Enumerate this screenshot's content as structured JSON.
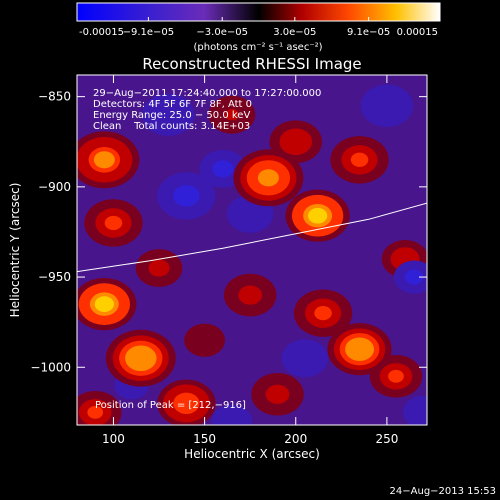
{
  "colorbar": {
    "tick_labels": [
      "-0.00015",
      "−9.1e−05",
      "−3.0e−05",
      "3.0e−05",
      "9.1e−05",
      "0.00015"
    ],
    "tick_values": [
      -0.00015,
      -9.1e-05,
      -3e-05,
      3e-05,
      9.1e-05,
      0.00015
    ],
    "range": [
      -0.00015,
      0.00015
    ],
    "units_label": "(photons cm⁻² s⁻¹ asec⁻²)"
  },
  "chart_data": {
    "type": "heatmap",
    "title": "Reconstructed RHESSI Image",
    "xlabel": "Heliocentric X (arcsec)",
    "ylabel": "Heliocentric Y (arcsec)",
    "xlim": [
      80,
      272
    ],
    "ylim": [
      -1032,
      -838
    ],
    "x_ticks": [
      100,
      150,
      200,
      250
    ],
    "y_ticks": [
      -850,
      -900,
      -950,
      -1000
    ],
    "annotations": {
      "time": "29−Aug−2011 17:24:40.000 to 17:27:00.000",
      "detectors": "Detectors: 4F 5F 6F 7F 8F, Att 0",
      "energy": "Energy Range: 25.0 − 50.0 keV",
      "counts": "Clean    Total counts: 3.14E+03",
      "peak": "Position of Peak = [212,−916]"
    },
    "limb_curve": [
      {
        "x": 80,
        "y": -947
      },
      {
        "x": 120,
        "y": -941
      },
      {
        "x": 160,
        "y": -934
      },
      {
        "x": 200,
        "y": -926
      },
      {
        "x": 240,
        "y": -918
      },
      {
        "x": 272,
        "y": -909
      }
    ],
    "peak": {
      "x": 212,
      "y": -916
    },
    "emission_blobs": [
      {
        "x": 212,
        "y": -916,
        "v": 1.0,
        "s": 11
      },
      {
        "x": 185,
        "y": -895,
        "v": 0.8,
        "s": 12
      },
      {
        "x": 235,
        "y": -885,
        "v": 0.6,
        "s": 10
      },
      {
        "x": 200,
        "y": -875,
        "v": 0.55,
        "s": 9
      },
      {
        "x": 95,
        "y": -885,
        "v": 0.75,
        "s": 12
      },
      {
        "x": 100,
        "y": -920,
        "v": 0.6,
        "s": 10
      },
      {
        "x": 95,
        "y": -965,
        "v": 0.95,
        "s": 11
      },
      {
        "x": 115,
        "y": -995,
        "v": 0.9,
        "s": 12
      },
      {
        "x": 140,
        "y": -1020,
        "v": 0.7,
        "s": 10
      },
      {
        "x": 90,
        "y": -1025,
        "v": 0.6,
        "s": 9
      },
      {
        "x": 235,
        "y": -990,
        "v": 0.85,
        "s": 11
      },
      {
        "x": 255,
        "y": -1005,
        "v": 0.6,
        "s": 9
      },
      {
        "x": 215,
        "y": -970,
        "v": 0.6,
        "s": 10
      },
      {
        "x": 175,
        "y": -960,
        "v": 0.45,
        "s": 9
      },
      {
        "x": 260,
        "y": -940,
        "v": 0.55,
        "s": 8
      },
      {
        "x": 190,
        "y": -1015,
        "v": 0.5,
        "s": 9
      },
      {
        "x": 165,
        "y": -860,
        "v": 0.4,
        "s": 8
      },
      {
        "x": 150,
        "y": -985,
        "v": 0.35,
        "s": 7
      },
      {
        "x": 125,
        "y": -945,
        "v": 0.45,
        "s": 8
      },
      {
        "x": 140,
        "y": -905,
        "v": -0.6,
        "s": 10
      },
      {
        "x": 160,
        "y": -890,
        "v": -0.55,
        "s": 8
      },
      {
        "x": 175,
        "y": -915,
        "v": -0.45,
        "s": 8
      },
      {
        "x": 265,
        "y": -950,
        "v": -0.6,
        "s": 7
      },
      {
        "x": 130,
        "y": -860,
        "v": -0.4,
        "s": 9
      },
      {
        "x": 250,
        "y": -855,
        "v": -0.35,
        "s": 9
      },
      {
        "x": 205,
        "y": -995,
        "v": -0.3,
        "s": 8
      },
      {
        "x": 110,
        "y": -1010,
        "v": -0.3,
        "s": 6
      },
      {
        "x": 270,
        "y": -1025,
        "v": -0.35,
        "s": 7
      },
      {
        "x": 165,
        "y": -1030,
        "v": -0.3,
        "s": 7
      }
    ]
  },
  "footer": {
    "timestamp": "24−Aug−2013 15:53"
  }
}
